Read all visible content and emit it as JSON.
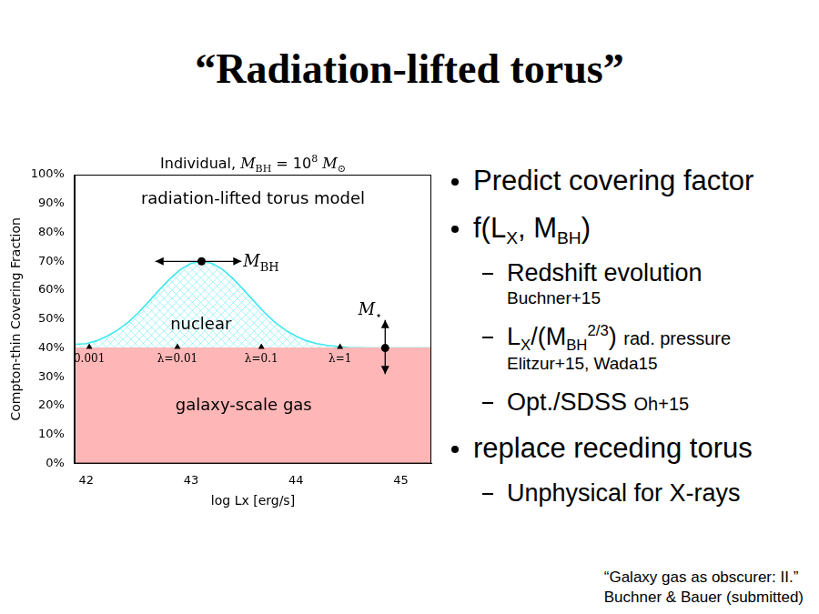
{
  "slide": {
    "title": "“Radiation-lifted torus”",
    "bullets": [
      {
        "text": [
          "Predict covering factor"
        ]
      },
      {
        "text": [
          "f(L",
          {
            "sub": "X"
          },
          ", M",
          {
            "sub": "BH"
          },
          ")"
        ],
        "items": [
          {
            "text": [
              "Redshift evolution"
            ],
            "ref": "Buchner+15"
          },
          {
            "text": [
              "L",
              {
                "sub": "X"
              },
              "/(M",
              {
                "sub": "BH"
              },
              {
                "sup": "2/3"
              },
              ")"
            ],
            "note": "rad. pressure",
            "ref": "Elitzur+15, Wada15"
          },
          {
            "text": [
              "Opt./SDSS"
            ],
            "note": "Oh+15"
          }
        ]
      },
      {
        "text": [
          "replace receding torus"
        ],
        "items": [
          {
            "text": [
              "Unphysical for X-rays"
            ]
          }
        ]
      }
    ],
    "citation": [
      "“Galaxy gas as obscurer: II.”",
      "Buchner & Bauer (submitted)"
    ]
  },
  "chart_data": {
    "type": "area",
    "title": [
      "Individual, ",
      {
        "i": "M"
      },
      {
        "sub": "BH"
      },
      " = 10",
      {
        "sup": "8"
      },
      " ",
      {
        "i": "M"
      },
      {
        "sub": "⊙"
      }
    ],
    "annotation": "radiation-lifted torus model",
    "xlabel": "log Lx [erg/s]",
    "ylabel": "Compton-thin Covering Fraction",
    "x": [
      41.9,
      42.0,
      42.1,
      42.2,
      42.3,
      42.4,
      42.5,
      42.6,
      42.7,
      42.8,
      42.9,
      43.0,
      43.1,
      43.2,
      43.3,
      43.4,
      43.5,
      43.6,
      43.7,
      43.8,
      43.9,
      44.0,
      44.1,
      44.2,
      44.3,
      44.4,
      44.5,
      44.6,
      44.7,
      44.8,
      44.9,
      45.0,
      45.1,
      45.2,
      45.3
    ],
    "series": [
      {
        "name": "galaxy-scale gas",
        "color": "#ffb6b6",
        "values": [
          40,
          40,
          40,
          40,
          40,
          40,
          40,
          40,
          40,
          40,
          40,
          40,
          40,
          40,
          40,
          40,
          40,
          40,
          40,
          40,
          40,
          40,
          40,
          40,
          40,
          40,
          40,
          40,
          40,
          40,
          40,
          40,
          40,
          40,
          40
        ]
      },
      {
        "name": "nuclear",
        "color": "#3ee8ee",
        "values": [
          41.3,
          41.5,
          42.5,
          44.1,
          46.2,
          48.9,
          52.3,
          56.2,
          60.2,
          64.0,
          67.2,
          69.3,
          70.0,
          69.3,
          67.2,
          64.0,
          60.2,
          56.2,
          52.3,
          48.9,
          46.2,
          44.1,
          42.5,
          41.5,
          40.9,
          40.5,
          40.2,
          40.1,
          40.0,
          40.0,
          40.0,
          40.0,
          40.0,
          40.0,
          40.0
        ]
      }
    ],
    "markers": {
      "eddington_ratio": {
        "x": [
          42.03,
          42.87,
          43.67,
          44.42
        ],
        "y": [
          40,
          40,
          40,
          40
        ],
        "labels": [
          "0.001",
          "λ=0.01",
          "λ=0.1",
          "λ=1"
        ]
      },
      "black_hole_mass": {
        "x": 43.1,
        "y": 70,
        "x_range": [
          42.66,
          43.48
        ],
        "label": [
          {
            "i": "M"
          },
          {
            "sub": "BH"
          }
        ]
      },
      "stellar_mass": {
        "x": 44.85,
        "y": 40,
        "y_range": [
          31,
          49.7
        ],
        "label": [
          {
            "i": "M"
          },
          {
            "sub": "⋆"
          }
        ]
      }
    },
    "xlim": [
      41.89,
      45.29
    ],
    "xticks": [
      42,
      43,
      44,
      45
    ],
    "ylim": [
      0,
      100
    ],
    "yticks": [
      {
        "value": 0,
        "label": "0%"
      },
      {
        "value": 10,
        "label": "10%"
      },
      {
        "value": 20,
        "label": "20%"
      },
      {
        "value": 30,
        "label": "30%"
      },
      {
        "value": 40,
        "label": "40%"
      },
      {
        "value": 50,
        "label": "50%"
      },
      {
        "value": 60,
        "label": "60%"
      },
      {
        "value": 70,
        "label": "70%"
      },
      {
        "value": 80,
        "label": "80%"
      },
      {
        "value": 90,
        "label": "90%"
      },
      {
        "value": 100,
        "label": "100%"
      }
    ],
    "grid": false
  }
}
